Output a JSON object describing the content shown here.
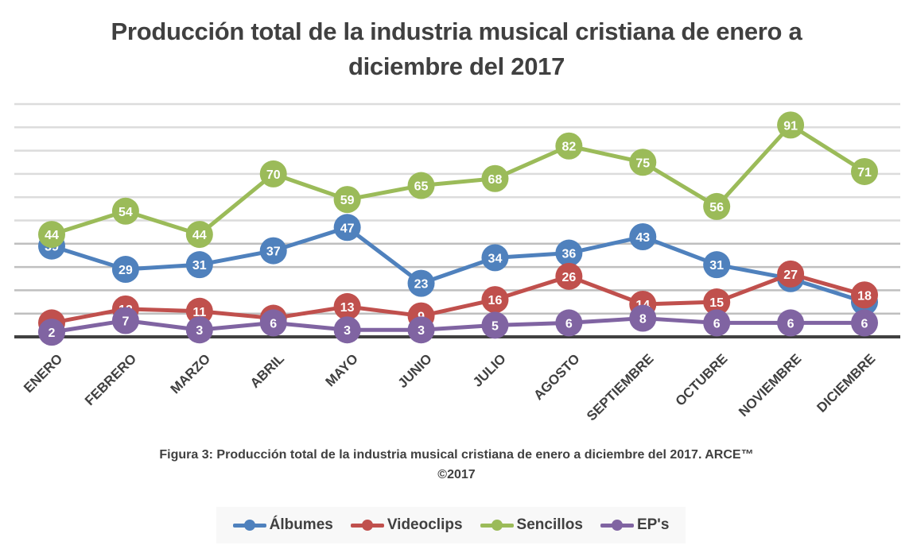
{
  "chart_data": {
    "type": "line",
    "title": "Producción total de la industria musical cristiana de enero a diciembre del 2017",
    "title_lines": [
      "Producción total de la industria musical cristiana de enero a",
      "diciembre del 2017"
    ],
    "xlabel": "",
    "ylabel": "",
    "categories": [
      "ENERO",
      "FEBRERO",
      "MARZO",
      "ABRIL",
      "MAYO",
      "JUNIO",
      "JULIO",
      "AGOSTO",
      "SEPTIEMBRE",
      "OCTUBRE",
      "NOVIEMBRE",
      "DICIEMBRE"
    ],
    "ylim": [
      0,
      100
    ],
    "y_grid_step": 10,
    "grid": true,
    "y_tick_labels_visible": false,
    "data_labels": true,
    "legend_position": "bottom",
    "series": [
      {
        "name": "Álbumes",
        "color": "#4f81bd",
        "values": [
          39,
          29,
          31,
          37,
          47,
          23,
          34,
          36,
          43,
          31,
          25,
          15
        ]
      },
      {
        "name": "Videoclips",
        "color": "#c0504d",
        "values": [
          6,
          12,
          11,
          8,
          13,
          9,
          16,
          26,
          14,
          15,
          27,
          18
        ]
      },
      {
        "name": "Sencillos",
        "color": "#9bbb59",
        "values": [
          44,
          54,
          44,
          70,
          59,
          65,
          68,
          82,
          75,
          56,
          91,
          71
        ]
      },
      {
        "name": "EP's",
        "color": "#8064a2",
        "values": [
          2,
          7,
          3,
          6,
          3,
          3,
          5,
          6,
          8,
          6,
          6,
          6
        ]
      }
    ]
  },
  "caption": {
    "line1": "Figura 3: Producción total de la industria musical cristiana de enero a diciembre del 2017. ARCE™",
    "line2": "©2017"
  },
  "legend": {
    "items": [
      {
        "label": "Álbumes",
        "color": "#4f81bd"
      },
      {
        "label": "Videoclips",
        "color": "#c0504d"
      },
      {
        "label": "Sencillos",
        "color": "#9bbb59"
      },
      {
        "label": "EP's",
        "color": "#8064a2"
      }
    ]
  }
}
